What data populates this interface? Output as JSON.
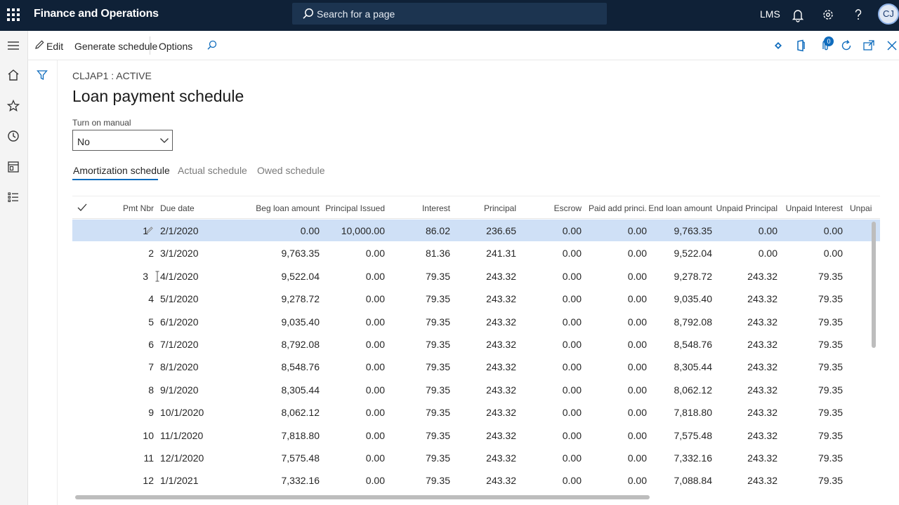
{
  "topbar": {
    "app_title": "Finance and Operations",
    "search_placeholder": "Search for a page",
    "company": "LMS",
    "user_initials": "CJ"
  },
  "action_pane": {
    "edit": "Edit",
    "generate_schedule": "Generate schedule",
    "options": "Options",
    "attachments_count": "0"
  },
  "page": {
    "caption": "CLJAP1 : ACTIVE",
    "title": "Loan payment schedule",
    "manual_label": "Turn on manual",
    "manual_value": "No"
  },
  "tabs": [
    {
      "label": "Amortization schedule"
    },
    {
      "label": "Actual schedule"
    },
    {
      "label": "Owed schedule"
    }
  ],
  "grid": {
    "columns": [
      "Pmt Nbr",
      "Due date",
      "Beg loan amount",
      "Principal Issued",
      "Interest",
      "Principal",
      "Escrow",
      "Paid add princi...",
      "End loan amount",
      "Unpaid Principal",
      "Unpaid Interest",
      "Unpai"
    ],
    "rows": [
      [
        "1",
        "2/1/2020",
        "0.00",
        "10,000.00",
        "86.02",
        "236.65",
        "0.00",
        "0.00",
        "9,763.35",
        "0.00",
        "0.00"
      ],
      [
        "2",
        "3/1/2020",
        "9,763.35",
        "0.00",
        "81.36",
        "241.31",
        "0.00",
        "0.00",
        "9,522.04",
        "0.00",
        "0.00"
      ],
      [
        "3",
        "4/1/2020",
        "9,522.04",
        "0.00",
        "79.35",
        "243.32",
        "0.00",
        "0.00",
        "9,278.72",
        "243.32",
        "79.35"
      ],
      [
        "4",
        "5/1/2020",
        "9,278.72",
        "0.00",
        "79.35",
        "243.32",
        "0.00",
        "0.00",
        "9,035.40",
        "243.32",
        "79.35"
      ],
      [
        "5",
        "6/1/2020",
        "9,035.40",
        "0.00",
        "79.35",
        "243.32",
        "0.00",
        "0.00",
        "8,792.08",
        "243.32",
        "79.35"
      ],
      [
        "6",
        "7/1/2020",
        "8,792.08",
        "0.00",
        "79.35",
        "243.32",
        "0.00",
        "0.00",
        "8,548.76",
        "243.32",
        "79.35"
      ],
      [
        "7",
        "8/1/2020",
        "8,548.76",
        "0.00",
        "79.35",
        "243.32",
        "0.00",
        "0.00",
        "8,305.44",
        "243.32",
        "79.35"
      ],
      [
        "8",
        "9/1/2020",
        "8,305.44",
        "0.00",
        "79.35",
        "243.32",
        "0.00",
        "0.00",
        "8,062.12",
        "243.32",
        "79.35"
      ],
      [
        "9",
        "10/1/2020",
        "8,062.12",
        "0.00",
        "79.35",
        "243.32",
        "0.00",
        "0.00",
        "7,818.80",
        "243.32",
        "79.35"
      ],
      [
        "10",
        "11/1/2020",
        "7,818.80",
        "0.00",
        "79.35",
        "243.32",
        "0.00",
        "0.00",
        "7,575.48",
        "243.32",
        "79.35"
      ],
      [
        "11",
        "12/1/2020",
        "7,575.48",
        "0.00",
        "79.35",
        "243.32",
        "0.00",
        "0.00",
        "7,332.16",
        "243.32",
        "79.35"
      ],
      [
        "12",
        "1/1/2021",
        "7,332.16",
        "0.00",
        "79.35",
        "243.32",
        "0.00",
        "0.00",
        "7,088.84",
        "243.32",
        "79.35"
      ]
    ]
  },
  "icons": {
    "app_launcher": "waffle-icon",
    "search": "search-icon",
    "notifications": "bell-icon",
    "settings": "gear-icon",
    "help": "help-icon",
    "edit": "pencil-icon",
    "filter": "filter-icon",
    "home": "home-icon",
    "favorites": "star-icon",
    "recent": "clock-icon",
    "workspaces": "workspace-icon",
    "modules": "list-icon"
  }
}
